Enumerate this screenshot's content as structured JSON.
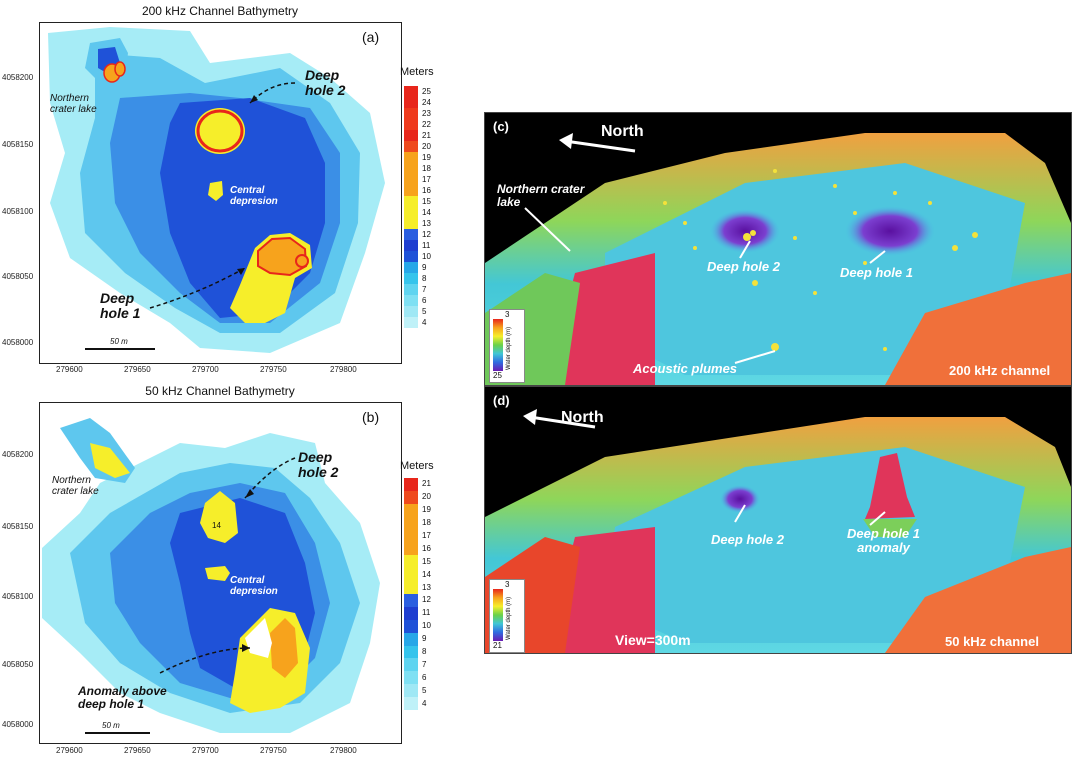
{
  "panel_a": {
    "title": "200 kHz Channel Bathymetry",
    "id": "(a)",
    "y_ticks": [
      "4058200",
      "4058150",
      "4058100",
      "4058050",
      "4058000"
    ],
    "x_ticks": [
      "279600",
      "279650",
      "279700",
      "279750",
      "279800"
    ],
    "legend_title": "Meters",
    "legend_values": [
      "25",
      "24",
      "23",
      "22",
      "21",
      "20",
      "19",
      "18",
      "17",
      "16",
      "15",
      "14",
      "13",
      "12",
      "11",
      "10",
      "9",
      "8",
      "7",
      "6",
      "5",
      "4"
    ],
    "scale_bar": "50 m",
    "labels": {
      "northern": "Northern\ncrater lake",
      "deep2": "Deep\nhole 2",
      "central": "Central\ndepresion",
      "deep1": "Deep\nhole 1"
    }
  },
  "panel_b": {
    "title": "50 kHz Channel Bathymetry",
    "id": "(b)",
    "y_ticks": [
      "4058200",
      "4058150",
      "4058100",
      "4058050",
      "4058000"
    ],
    "x_ticks": [
      "279600",
      "279650",
      "279700",
      "279750",
      "279800"
    ],
    "legend_title": "Meters",
    "legend_values": [
      "21",
      "20",
      "19",
      "18",
      "17",
      "16",
      "15",
      "14",
      "13",
      "12",
      "11",
      "10",
      "9",
      "8",
      "7",
      "6",
      "5",
      "4"
    ],
    "scale_bar": "50 m",
    "labels": {
      "northern": "Northern\ncrater lake",
      "deep2": "Deep\nhole 2",
      "central": "Central\ndepresion",
      "anomaly": "Anomaly above\ndeep hole 1",
      "contour14": "14"
    }
  },
  "panel_c": {
    "id": "(c)",
    "north": "North",
    "northern": "Northern crater\nlake",
    "deep2": "Deep hole 2",
    "deep1": "Deep hole 1",
    "plumes": "Acoustic plumes",
    "channel": "200 kHz  channel",
    "cbar_top": "3",
    "cbar_bottom": "25",
    "cbar_label": "Water depth (m)"
  },
  "panel_d": {
    "id": "(d)",
    "north": "North",
    "deep2": "Deep hole 2",
    "deep1": "Deep hole 1\nanomaly",
    "view": "View=300m",
    "channel": "50 kHz channel",
    "cbar_top": "3",
    "cbar_bottom": "21",
    "cbar_label": "Water depth (m)"
  },
  "colors": {
    "deep_blue": "#1d4fd6",
    "mid_blue": "#3a8fe6",
    "light_cyan": "#9fe8f5",
    "yellow": "#f6ee2a",
    "orange": "#f7a31c",
    "red": "#e8261b"
  }
}
